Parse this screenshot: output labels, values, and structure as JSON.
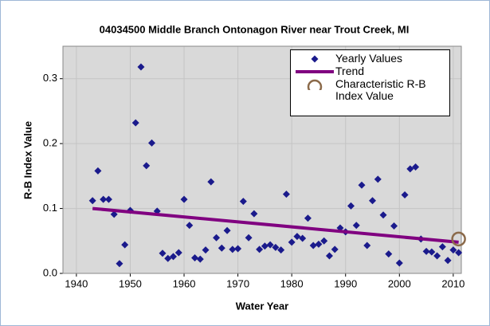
{
  "chart_data": {
    "type": "scatter",
    "title": "04034500 Middle Branch Ontonagon River near Trout Creek, MI",
    "xlabel": "Water Year",
    "ylabel": "R-B Index Value",
    "xlim": [
      1937.5,
      2011.5
    ],
    "ylim": [
      0,
      0.35
    ],
    "xticks": [
      1940,
      1950,
      1960,
      1970,
      1980,
      1990,
      2000,
      2010
    ],
    "yticks": [
      {
        "value": 0,
        "label": "0.0"
      },
      0.1,
      0.2,
      0.3
    ],
    "grid": true,
    "legend": "upper right",
    "series": [
      {
        "name": "Yearly Values",
        "type": "scatter",
        "marker": "diamond",
        "color": "#1a1a8c",
        "x": [
          1943,
          1944,
          1945,
          1946,
          1947,
          1948,
          1949,
          1950,
          1951,
          1952,
          1953,
          1954,
          1955,
          1956,
          1957,
          1958,
          1959,
          1960,
          1961,
          1962,
          1963,
          1964,
          1965,
          1966,
          1967,
          1968,
          1969,
          1970,
          1971,
          1972,
          1973,
          1974,
          1975,
          1976,
          1977,
          1978,
          1979,
          1980,
          1981,
          1982,
          1983,
          1984,
          1985,
          1986,
          1987,
          1988,
          1989,
          1990,
          1991,
          1992,
          1993,
          1994,
          1995,
          1996,
          1997,
          1998,
          1999,
          2000,
          2001,
          2002,
          2003,
          2004,
          2005,
          2006,
          2007,
          2008,
          2009,
          2010,
          2011
        ],
        "values": [
          0.112,
          0.158,
          0.114,
          0.114,
          0.091,
          0.015,
          0.044,
          0.097,
          0.232,
          0.318,
          0.166,
          0.201,
          0.096,
          0.031,
          0.023,
          0.026,
          0.032,
          0.114,
          0.074,
          0.024,
          0.022,
          0.036,
          0.141,
          0.055,
          0.039,
          0.066,
          0.037,
          0.038,
          0.111,
          0.055,
          0.092,
          0.037,
          0.042,
          0.044,
          0.04,
          0.036,
          0.122,
          0.048,
          0.057,
          0.054,
          0.085,
          0.043,
          0.045,
          0.05,
          0.027,
          0.037,
          0.07,
          0.064,
          0.104,
          0.074,
          0.136,
          0.043,
          0.112,
          0.145,
          0.09,
          0.03,
          0.073,
          0.016,
          0.121,
          0.161,
          0.164,
          0.053,
          0.034,
          0.033,
          0.027,
          0.041,
          0.02,
          0.036,
          0.032
        ]
      },
      {
        "name": "Trend",
        "type": "line",
        "color": "#800080",
        "x": [
          1943,
          2011
        ],
        "values": [
          0.1,
          0.048
        ]
      },
      {
        "name": "Characteristic R-B Index Value",
        "type": "scatter",
        "marker": "circle",
        "color": "#8b6a4a",
        "x": [
          2011
        ],
        "values": [
          0.053
        ]
      }
    ]
  }
}
